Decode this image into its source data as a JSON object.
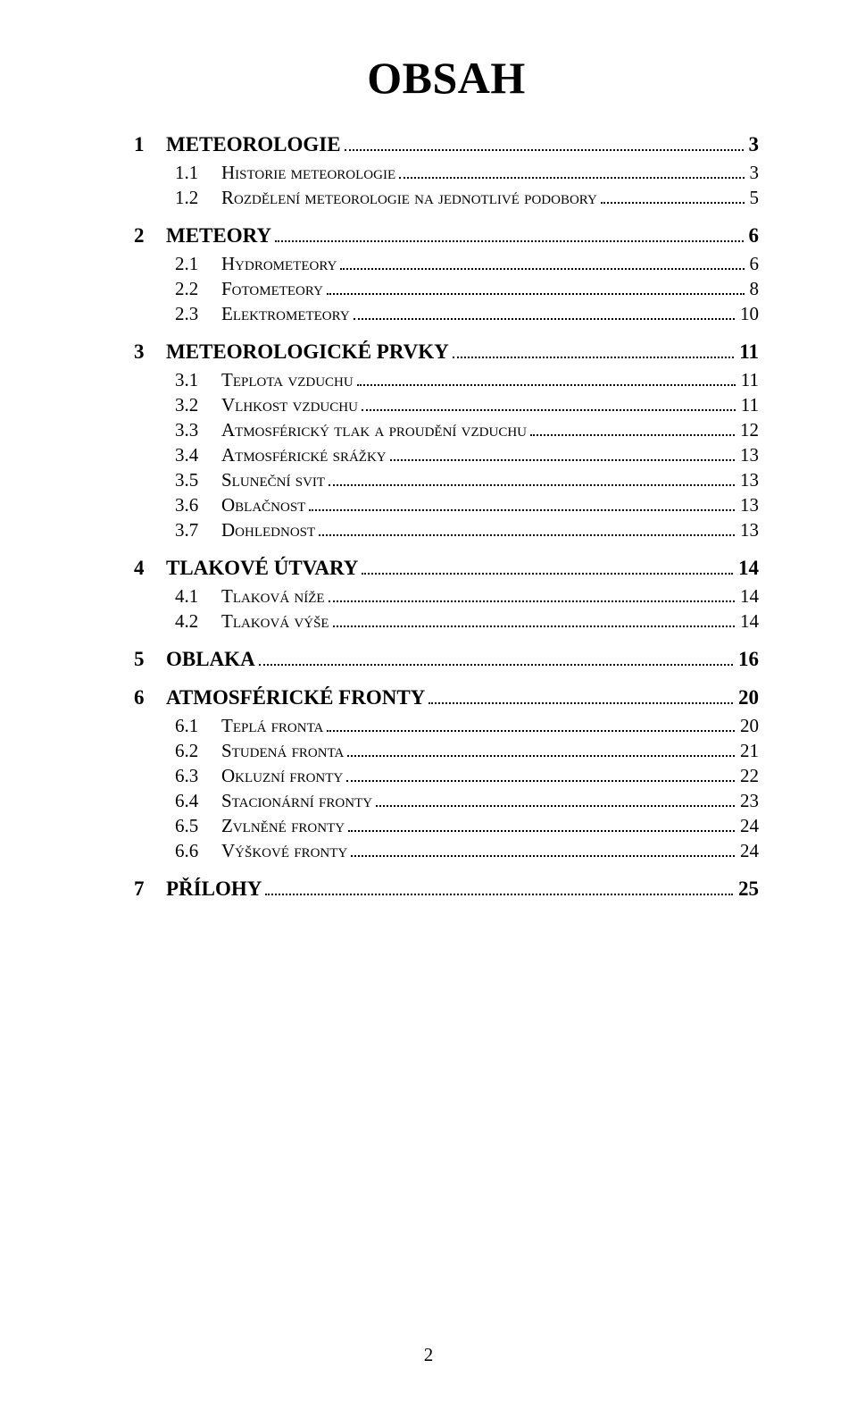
{
  "document": {
    "title": "OBSAH",
    "page_number": "2",
    "background_color": "#ffffff",
    "text_color": "#000000",
    "font_family": "Times New Roman",
    "title_fontsize": 50,
    "level1_fontsize": 23,
    "level2_fontsize": 21,
    "leader_style": "dotted"
  },
  "toc": [
    {
      "level": 1,
      "num": "1",
      "label": "METEOROLOGIE",
      "page": "3",
      "smallcaps": false
    },
    {
      "level": 2,
      "num": "1.1",
      "label": "Historie meteorologie",
      "page": "3",
      "smallcaps": true
    },
    {
      "level": 2,
      "num": "1.2",
      "label": "Rozdělení meteorologie na jednotlivé podobory",
      "page": "5",
      "smallcaps": true
    },
    {
      "level": 1,
      "num": "2",
      "label": "METEORY",
      "page": "6",
      "smallcaps": false
    },
    {
      "level": 2,
      "num": "2.1",
      "label": "Hydrometeory",
      "page": "6",
      "smallcaps": true
    },
    {
      "level": 2,
      "num": "2.2",
      "label": "Fotometeory",
      "page": "8",
      "smallcaps": true
    },
    {
      "level": 2,
      "num": "2.3",
      "label": "Elektrometeory",
      "page": "10",
      "smallcaps": true
    },
    {
      "level": 1,
      "num": "3",
      "label": "METEOROLOGICKÉ PRVKY",
      "page": "11",
      "smallcaps": false
    },
    {
      "level": 2,
      "num": "3.1",
      "label": "Teplota vzduchu",
      "page": "11",
      "smallcaps": true
    },
    {
      "level": 2,
      "num": "3.2",
      "label": "Vlhkost vzduchu",
      "page": "11",
      "smallcaps": true
    },
    {
      "level": 2,
      "num": "3.3",
      "label": "Atmosférický tlak a proudění vzduchu",
      "page": "12",
      "smallcaps": true
    },
    {
      "level": 2,
      "num": "3.4",
      "label": "Atmosférické srážky",
      "page": "13",
      "smallcaps": true
    },
    {
      "level": 2,
      "num": "3.5",
      "label": "Sluneční svit",
      "page": "13",
      "smallcaps": true
    },
    {
      "level": 2,
      "num": "3.6",
      "label": "Oblačnost",
      "page": "13",
      "smallcaps": true
    },
    {
      "level": 2,
      "num": "3.7",
      "label": "Dohlednost",
      "page": "13",
      "smallcaps": true
    },
    {
      "level": 1,
      "num": "4",
      "label": "TLAKOVÉ ÚTVARY",
      "page": "14",
      "smallcaps": false
    },
    {
      "level": 2,
      "num": "4.1",
      "label": "Tlaková níže",
      "page": "14",
      "smallcaps": true
    },
    {
      "level": 2,
      "num": "4.2",
      "label": "Tlaková výše",
      "page": "14",
      "smallcaps": true
    },
    {
      "level": 1,
      "num": "5",
      "label": "OBLAKA",
      "page": "16",
      "smallcaps": false
    },
    {
      "level": 1,
      "num": "6",
      "label": "ATMOSFÉRICKÉ FRONTY",
      "page": "20",
      "smallcaps": false
    },
    {
      "level": 2,
      "num": "6.1",
      "label": "Teplá fronta",
      "page": "20",
      "smallcaps": true
    },
    {
      "level": 2,
      "num": "6.2",
      "label": "Studená fronta",
      "page": "21",
      "smallcaps": true
    },
    {
      "level": 2,
      "num": "6.3",
      "label": "Okluzní fronty",
      "page": "22",
      "smallcaps": true
    },
    {
      "level": 2,
      "num": "6.4",
      "label": "Stacionární fronty",
      "page": "23",
      "smallcaps": true
    },
    {
      "level": 2,
      "num": "6.5",
      "label": "Zvlněné fronty",
      "page": "24",
      "smallcaps": true
    },
    {
      "level": 2,
      "num": "6.6",
      "label": "Výškové fronty",
      "page": "24",
      "smallcaps": true
    },
    {
      "level": 1,
      "num": "7",
      "label": "PŘÍLOHY",
      "page": "25",
      "smallcaps": false
    }
  ]
}
